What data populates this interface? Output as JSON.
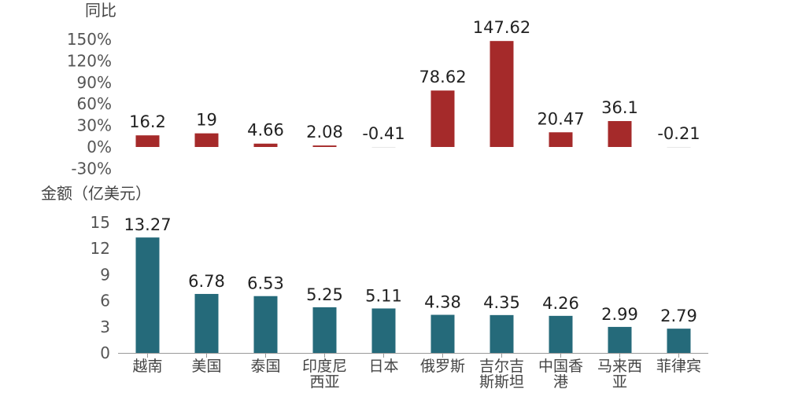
{
  "chart_data": [
    {
      "type": "bar",
      "ylabel": "同比",
      "categories": [
        "越南",
        "美国",
        "泰国",
        "印度尼西亚",
        "日本",
        "俄罗斯",
        "吉尔吉斯斯坦",
        "中国香港",
        "马来西亚",
        "菲律宾"
      ],
      "values": [
        16.2,
        19,
        4.66,
        2.08,
        -0.41,
        78.62,
        147.62,
        20.47,
        36.1,
        -0.21
      ],
      "data_labels": [
        "16.2",
        "19",
        "4.66",
        "2.08",
        "-0.41",
        "78.62",
        "147.62",
        "20.47",
        "36.1",
        "-0.21"
      ],
      "yticks": [
        "-30%",
        "0%",
        "30%",
        "60%",
        "90%",
        "120%",
        "150%"
      ],
      "ylim": [
        -30,
        150
      ],
      "color": "#A52A2A"
    },
    {
      "type": "bar",
      "ylabel": "金额（亿美元）",
      "categories": [
        "越南",
        "美国",
        "泰国",
        "印度尼西亚",
        "日本",
        "俄罗斯",
        "吉尔吉斯斯坦",
        "中国香港",
        "马来西亚",
        "菲律宾"
      ],
      "category_lines": [
        [
          "越南"
        ],
        [
          "美国"
        ],
        [
          "泰国"
        ],
        [
          "印度尼",
          "西亚"
        ],
        [
          "日本"
        ],
        [
          "俄罗斯"
        ],
        [
          "吉尔吉",
          "斯斯坦"
        ],
        [
          "中国香",
          "港"
        ],
        [
          "马来西",
          "亚"
        ],
        [
          "菲律宾"
        ]
      ],
      "values": [
        13.27,
        6.78,
        6.53,
        5.25,
        5.11,
        4.38,
        4.35,
        4.26,
        2.99,
        2.79
      ],
      "data_labels": [
        "13.27",
        "6.78",
        "6.53",
        "5.25",
        "5.11",
        "4.38",
        "4.35",
        "4.26",
        "2.99",
        "2.79"
      ],
      "yticks": [
        "0",
        "3",
        "6",
        "9",
        "12",
        "15"
      ],
      "ylim": [
        0,
        15
      ],
      "color": "#256A7A"
    }
  ]
}
